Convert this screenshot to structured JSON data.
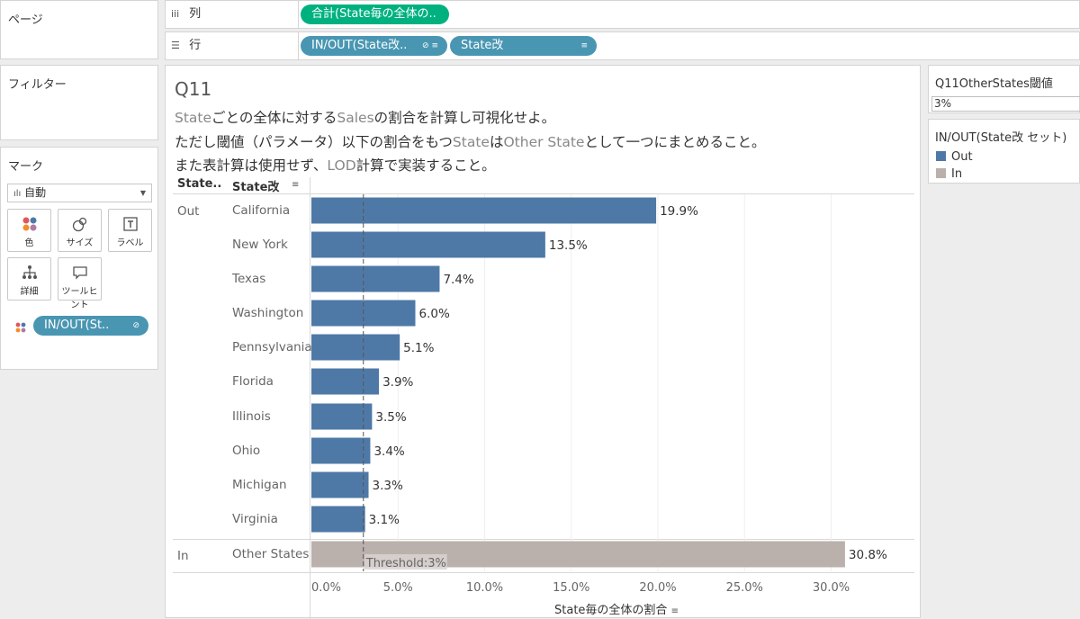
{
  "pages_panel": {
    "title": "ページ"
  },
  "filters_panel": {
    "title": "フィルター"
  },
  "marks_panel": {
    "title": "マーク",
    "mark_type": "自動",
    "buttons": [
      {
        "label": "色",
        "icon": "color-icon"
      },
      {
        "label": "サイズ",
        "icon": "size-icon"
      },
      {
        "label": "ラベル",
        "icon": "label-icon"
      },
      {
        "label": "詳細",
        "icon": "detail-icon"
      },
      {
        "label": "ツールヒント",
        "icon": "tooltip-icon"
      }
    ],
    "color_pill": "IN/OUT(St.."
  },
  "columns_shelf": {
    "label": "列",
    "pill": "合計(State毎の全体の.."
  },
  "rows_shelf": {
    "label": "行",
    "pills": [
      "IN/OUT(State改..",
      "State改"
    ]
  },
  "worksheet": {
    "title": "Q11",
    "desc_line1_a": "State",
    "desc_line1_b": "ごとの全体に対する",
    "desc_line1_c": "Sales",
    "desc_line1_d": "の割合を計算し可視化せよ。",
    "desc_line2_a": "ただし閾値（パラメータ）以下の割合をもつ",
    "desc_line2_b": "State",
    "desc_line2_c": "は",
    "desc_line2_d": "Other State",
    "desc_line2_e": "として一つにまとめること。",
    "desc_line3_a": "また表計算は使用せず、",
    "desc_line3_b": "LOD",
    "desc_line3_c": "計算で実装すること。",
    "col_header_1": "State..",
    "col_header_2": "State改",
    "group_out": "Out",
    "group_in": "In",
    "threshold_label": "Threshold:3%",
    "axis_title": "State毎の全体の割合"
  },
  "chart_data": {
    "type": "bar",
    "orientation": "horizontal",
    "categories": [
      "California",
      "New York",
      "Texas",
      "Washington",
      "Pennsylvania",
      "Florida",
      "Illinois",
      "Ohio",
      "Michigan",
      "Virginia",
      "Other States"
    ],
    "groups": [
      "Out",
      "Out",
      "Out",
      "Out",
      "Out",
      "Out",
      "Out",
      "Out",
      "Out",
      "Out",
      "In"
    ],
    "values": [
      19.9,
      13.5,
      7.4,
      6.0,
      5.1,
      3.9,
      3.5,
      3.4,
      3.3,
      3.1,
      30.8
    ],
    "data_labels": [
      "19.9%",
      "13.5%",
      "7.4%",
      "6.0%",
      "5.1%",
      "3.9%",
      "3.5%",
      "3.4%",
      "3.3%",
      "3.1%",
      "30.8%"
    ],
    "xlim": [
      0,
      32
    ],
    "x_ticks": [
      0,
      5,
      10,
      15,
      20,
      25,
      30
    ],
    "x_tick_labels": [
      "0.0%",
      "5.0%",
      "10.0%",
      "15.0%",
      "20.0%",
      "25.0%",
      "30.0%"
    ],
    "xlabel": "State毎の全体の割合",
    "reference_line": {
      "value": 3,
      "label": "Threshold:3%"
    },
    "colors": {
      "Out": "#4e79a7",
      "In": "#bab0ac"
    },
    "grid": true
  },
  "parameter_card": {
    "title": "Q11OtherStates閾値",
    "value": "3%"
  },
  "legend_card": {
    "title": "IN/OUT(State改 セット)",
    "items": [
      {
        "label": "Out",
        "color": "#4e79a7"
      },
      {
        "label": "In",
        "color": "#bab0ac"
      }
    ]
  }
}
